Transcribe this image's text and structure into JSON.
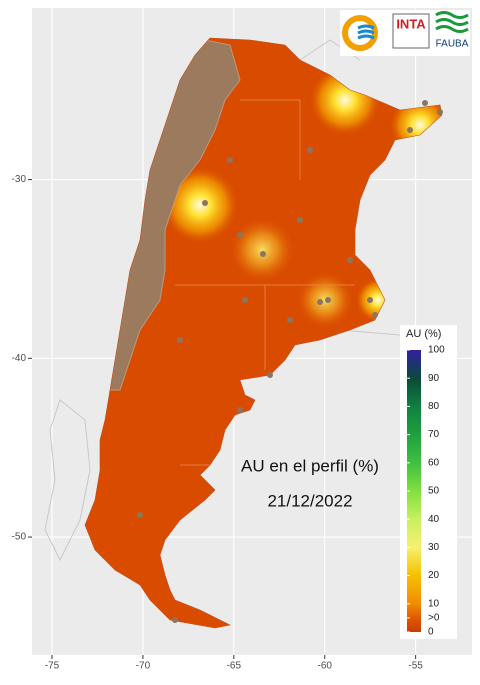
{
  "map": {
    "title": "AU en el perfil (%)",
    "date": "21/12/2022",
    "xlim": [
      -76.1,
      -51.9
    ],
    "ylim": [
      -56.6,
      -20.4
    ],
    "xticks": [
      -75,
      -70,
      -65,
      -60,
      -55
    ],
    "yticks": [
      -30,
      -40,
      -50
    ],
    "legend": {
      "title": "AU (%)",
      "lim": [
        0,
        100
      ],
      "ticks": [
        100,
        90,
        80,
        70,
        60,
        50,
        40,
        30,
        20,
        10,
        {
          "value": 5,
          "label": ">0"
        },
        0
      ]
    },
    "logos": [
      "INTA",
      "FAUBA"
    ]
  }
}
